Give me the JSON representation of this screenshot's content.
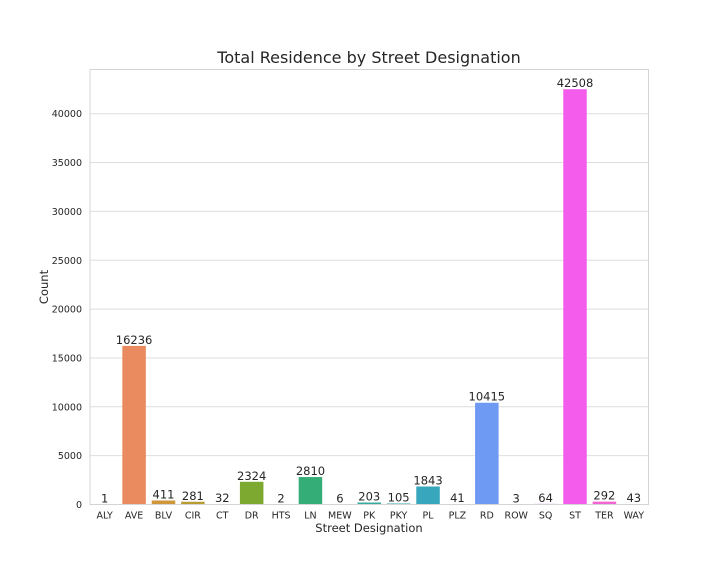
{
  "chart_data": {
    "type": "bar",
    "title": "Total Residence by Street Designation",
    "xlabel": "Street Designation",
    "ylabel": "Count",
    "ylim": [
      0,
      44525
    ],
    "yticks": [
      0,
      5000,
      10000,
      15000,
      20000,
      25000,
      30000,
      35000,
      40000
    ],
    "grid": true,
    "categories": [
      "ALY",
      "AVE",
      "BLV",
      "CIR",
      "CT",
      "DR",
      "HTS",
      "LN",
      "MEW",
      "PK",
      "PKY",
      "PL",
      "PLZ",
      "RD",
      "ROW",
      "SQ",
      "ST",
      "TER",
      "WAY"
    ],
    "values": [
      1,
      16236,
      411,
      281,
      32,
      2324,
      2,
      2810,
      6,
      203,
      105,
      1843,
      41,
      10415,
      3,
      64,
      42508,
      292,
      43
    ],
    "data_labels": [
      "1",
      "16236",
      "411",
      "281",
      "32",
      "2324",
      "2",
      "2810",
      "6",
      "203",
      "105",
      "1843",
      "41",
      "10415",
      "3",
      "64",
      "42508",
      "292",
      "43"
    ],
    "colors": [
      "#f77189",
      "#e98b5e",
      "#d0963a",
      "#b69c32",
      "#9ea234",
      "#7ea931",
      "#4fb031",
      "#34ae76",
      "#35ac8e",
      "#36aa9f",
      "#37a9ad",
      "#38a7be",
      "#3ba3d3",
      "#6e9af4",
      "#a48cf4",
      "#c879f4",
      "#f45deb",
      "#f564d3",
      "#f66bb4"
    ]
  }
}
